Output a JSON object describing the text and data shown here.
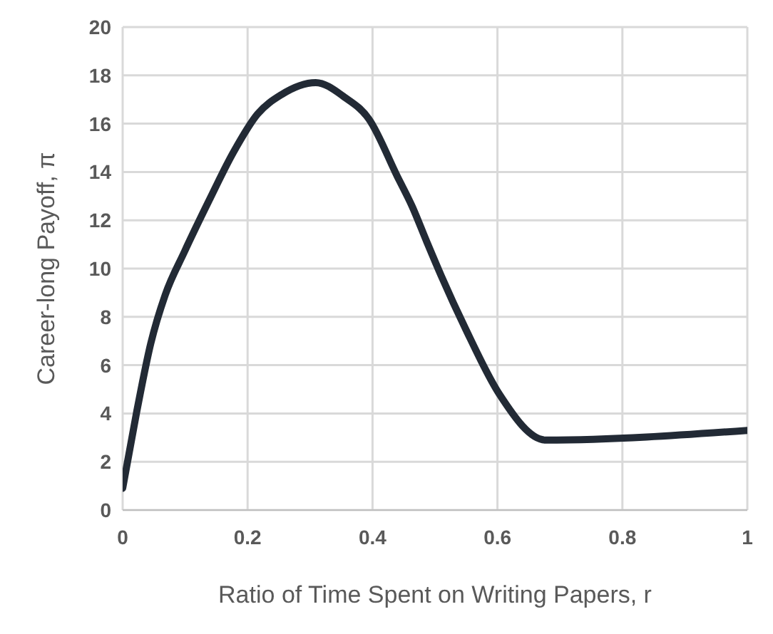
{
  "chart_data": {
    "type": "line",
    "xlabel": "Ratio of Time Spent on Writing Papers, r",
    "ylabel": "Career-long Payoff, π",
    "x": [
      0,
      0.022,
      0.045,
      0.068,
      0.099,
      0.138,
      0.177,
      0.216,
      0.254,
      0.309,
      0.355,
      0.394,
      0.44,
      0.463,
      0.487,
      0.51,
      0.549,
      0.603,
      0.677,
      1.0
    ],
    "series": [
      {
        "color": "#222a35",
        "values": [
          0.9,
          4.0,
          6.9,
          8.9,
          10.7,
          12.8,
          14.8,
          16.4,
          17.2,
          17.7,
          17.1,
          16.2,
          13.8,
          12.6,
          11.1,
          9.7,
          7.5,
          4.8,
          2.9,
          3.3
        ]
      }
    ],
    "xlim": [
      0,
      1
    ],
    "xticks": [
      0,
      0.2,
      0.4,
      0.6,
      0.8,
      1
    ],
    "ylim": [
      0,
      20
    ],
    "yticks": [
      0,
      2,
      4,
      6,
      8,
      10,
      12,
      14,
      16,
      18,
      20
    ],
    "grid": true,
    "legend": false,
    "marker": "none",
    "line_style": "solid"
  }
}
